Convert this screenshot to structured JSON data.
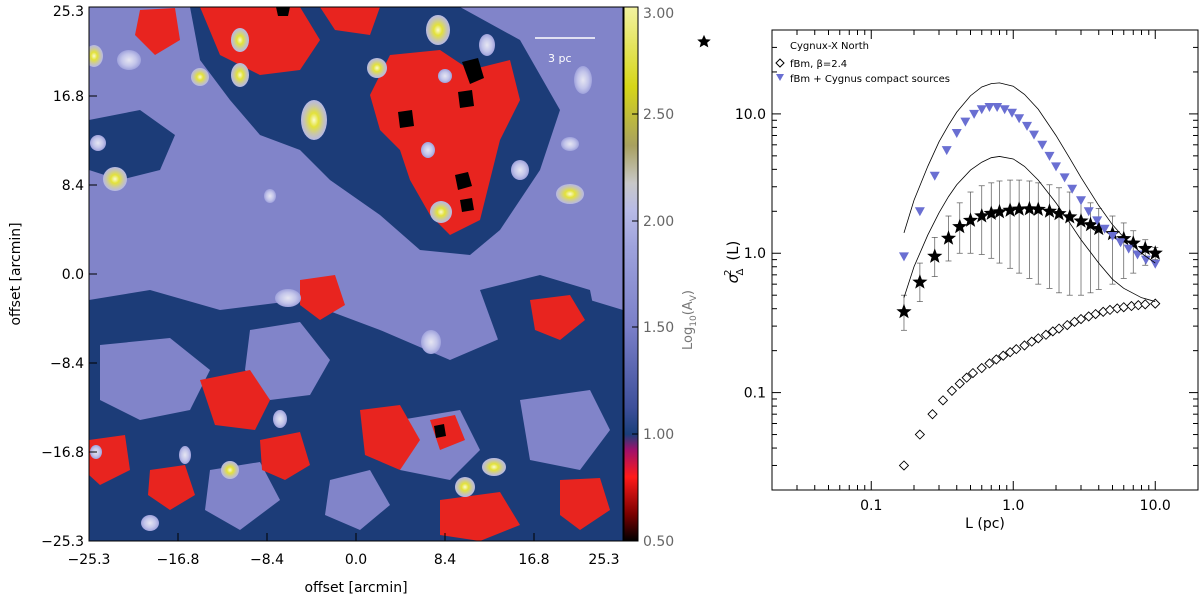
{
  "left_panel": {
    "scale_bar_label": "3 pc",
    "x_label": "offset [arcmin]",
    "y_label": "offset [arcmin]",
    "x_ticks": [
      "−25.3",
      "−16.8",
      "−8.4",
      "0.0",
      "8.4",
      "16.8",
      "25.3"
    ],
    "y_ticks": [
      "25.3",
      "16.8",
      "8.4",
      "0.0",
      "−8.4",
      "−16.8",
      "−25.3"
    ],
    "colorbar": {
      "label_main": "Log",
      "label_sub": "10",
      "label_paren": "(A",
      "label_sub2": "V",
      "label_close": ")",
      "ticks": [
        "3.00",
        "2.50",
        "2.00",
        "1.50",
        "1.00",
        "0.50"
      ],
      "range": [
        0.5,
        3.0
      ],
      "colormap": [
        "#000000",
        "#ff1a1a",
        "#1a3f7a",
        "#7a7fc8",
        "#aeb2e0",
        "#a8a060",
        "#d6d618",
        "#f2f2a0"
      ]
    },
    "colors": {
      "background": "#8184c9",
      "contour": "#1c3c78",
      "filament": "#e8241f",
      "source_core": "#e3e23a"
    }
  },
  "chart_data": {
    "type": "scatter",
    "xlabel": "L (pc)",
    "ylabel_main": "σ",
    "ylabel_sub": "Δ",
    "ylabel_sup": "2",
    "ylabel_tail": "(L)",
    "x_scale": "log",
    "y_scale": "log",
    "xlim": [
      0.02,
      20
    ],
    "ylim": [
      0.02,
      40
    ],
    "x_ticks": [
      {
        "v": 0.1,
        "label": "0.1"
      },
      {
        "v": 1.0,
        "label": "1.0"
      },
      {
        "v": 10.0,
        "label": "10.0"
      }
    ],
    "y_ticks": [
      {
        "v": 0.1,
        "label": "0.1"
      },
      {
        "v": 1.0,
        "label": "1.0"
      },
      {
        "v": 10.0,
        "label": "10.0"
      }
    ],
    "legend_position": "top-left",
    "series": [
      {
        "name": "Cygnux-X North",
        "marker": "star",
        "color": "#000000",
        "x": [
          0.17,
          0.22,
          0.28,
          0.35,
          0.42,
          0.5,
          0.6,
          0.7,
          0.8,
          0.95,
          1.1,
          1.3,
          1.5,
          1.8,
          2.1,
          2.5,
          3.0,
          3.5,
          4.0,
          5.0,
          6.0,
          7.0,
          8.5,
          10.0
        ],
        "y": [
          0.38,
          0.62,
          0.95,
          1.28,
          1.55,
          1.72,
          1.85,
          1.93,
          1.98,
          2.03,
          2.07,
          2.08,
          2.06,
          2.0,
          1.92,
          1.82,
          1.7,
          1.6,
          1.5,
          1.38,
          1.27,
          1.18,
          1.08,
          1.0
        ],
        "err_low": [
          0.28,
          0.45,
          0.68,
          0.88,
          1.0,
          1.0,
          0.98,
          0.92,
          0.85,
          0.78,
          0.72,
          0.66,
          0.6,
          0.56,
          0.52,
          0.5,
          0.5,
          0.52,
          0.55,
          0.6,
          0.66,
          0.72,
          0.82,
          0.9
        ],
        "err_high": [
          0.5,
          0.85,
          1.3,
          1.85,
          2.3,
          2.75,
          3.05,
          3.2,
          3.3,
          3.35,
          3.35,
          3.3,
          3.2,
          3.1,
          2.95,
          2.75,
          2.5,
          2.3,
          2.1,
          1.85,
          1.65,
          1.45,
          1.25,
          1.1
        ]
      },
      {
        "name": "fBm, β=2.4",
        "marker": "diamond",
        "color": "#000000",
        "x": [
          0.17,
          0.22,
          0.27,
          0.32,
          0.37,
          0.42,
          0.47,
          0.52,
          0.6,
          0.68,
          0.76,
          0.85,
          0.95,
          1.05,
          1.2,
          1.35,
          1.5,
          1.7,
          1.9,
          2.1,
          2.4,
          2.7,
          3.0,
          3.4,
          3.8,
          4.3,
          4.8,
          5.4,
          6.0,
          6.8,
          7.6,
          8.5,
          10.0
        ],
        "y": [
          0.03,
          0.05,
          0.07,
          0.088,
          0.103,
          0.116,
          0.128,
          0.138,
          0.15,
          0.162,
          0.173,
          0.184,
          0.195,
          0.205,
          0.218,
          0.232,
          0.245,
          0.26,
          0.275,
          0.288,
          0.305,
          0.322,
          0.337,
          0.352,
          0.366,
          0.38,
          0.392,
          0.402,
          0.41,
          0.418,
          0.424,
          0.43,
          0.435
        ]
      },
      {
        "name": "fBm + Cygnus compact sources",
        "marker": "triangle-down",
        "color": "#6a6fd2",
        "x": [
          0.17,
          0.22,
          0.28,
          0.34,
          0.4,
          0.46,
          0.53,
          0.6,
          0.68,
          0.77,
          0.87,
          0.98,
          1.1,
          1.25,
          1.4,
          1.6,
          1.8,
          2.0,
          2.3,
          2.6,
          3.0,
          3.4,
          3.9,
          4.4,
          5.0,
          5.7,
          6.5,
          7.5,
          8.6,
          10.0
        ],
        "y": [
          0.95,
          2.0,
          3.6,
          5.5,
          7.3,
          8.8,
          10.0,
          10.8,
          11.2,
          11.2,
          10.8,
          10.2,
          9.3,
          8.2,
          7.1,
          6.0,
          5.0,
          4.2,
          3.5,
          2.9,
          2.4,
          2.0,
          1.72,
          1.5,
          1.33,
          1.2,
          1.08,
          0.98,
          0.9,
          0.84
        ]
      },
      {
        "name": "",
        "marker": "line",
        "color": "#000000",
        "x": [
          0.17,
          0.2,
          0.25,
          0.3,
          0.35,
          0.4,
          0.5,
          0.6,
          0.7,
          0.8,
          1.0,
          1.2,
          1.5,
          2.0,
          2.5,
          3.0,
          4.0,
          5.0,
          6.0,
          8.0,
          10.0
        ],
        "y": [
          1.4,
          2.4,
          4.2,
          6.3,
          8.3,
          10.3,
          13.5,
          15.6,
          16.5,
          16.7,
          15.8,
          13.8,
          10.8,
          7.0,
          4.8,
          3.5,
          2.2,
          1.6,
          1.3,
          1.0,
          0.85
        ]
      },
      {
        "name": "",
        "marker": "line",
        "color": "#000000",
        "x": [
          0.17,
          0.2,
          0.25,
          0.3,
          0.35,
          0.4,
          0.5,
          0.6,
          0.7,
          0.8,
          1.0,
          1.2,
          1.5,
          2.0,
          2.5,
          3.0,
          4.0,
          5.0,
          6.0,
          8.0,
          10.0
        ],
        "y": [
          0.48,
          0.8,
          1.35,
          1.95,
          2.55,
          3.1,
          3.95,
          4.5,
          4.85,
          4.95,
          4.75,
          4.2,
          3.35,
          2.3,
          1.65,
          1.25,
          0.85,
          0.65,
          0.56,
          0.48,
          0.45
        ]
      }
    ]
  }
}
